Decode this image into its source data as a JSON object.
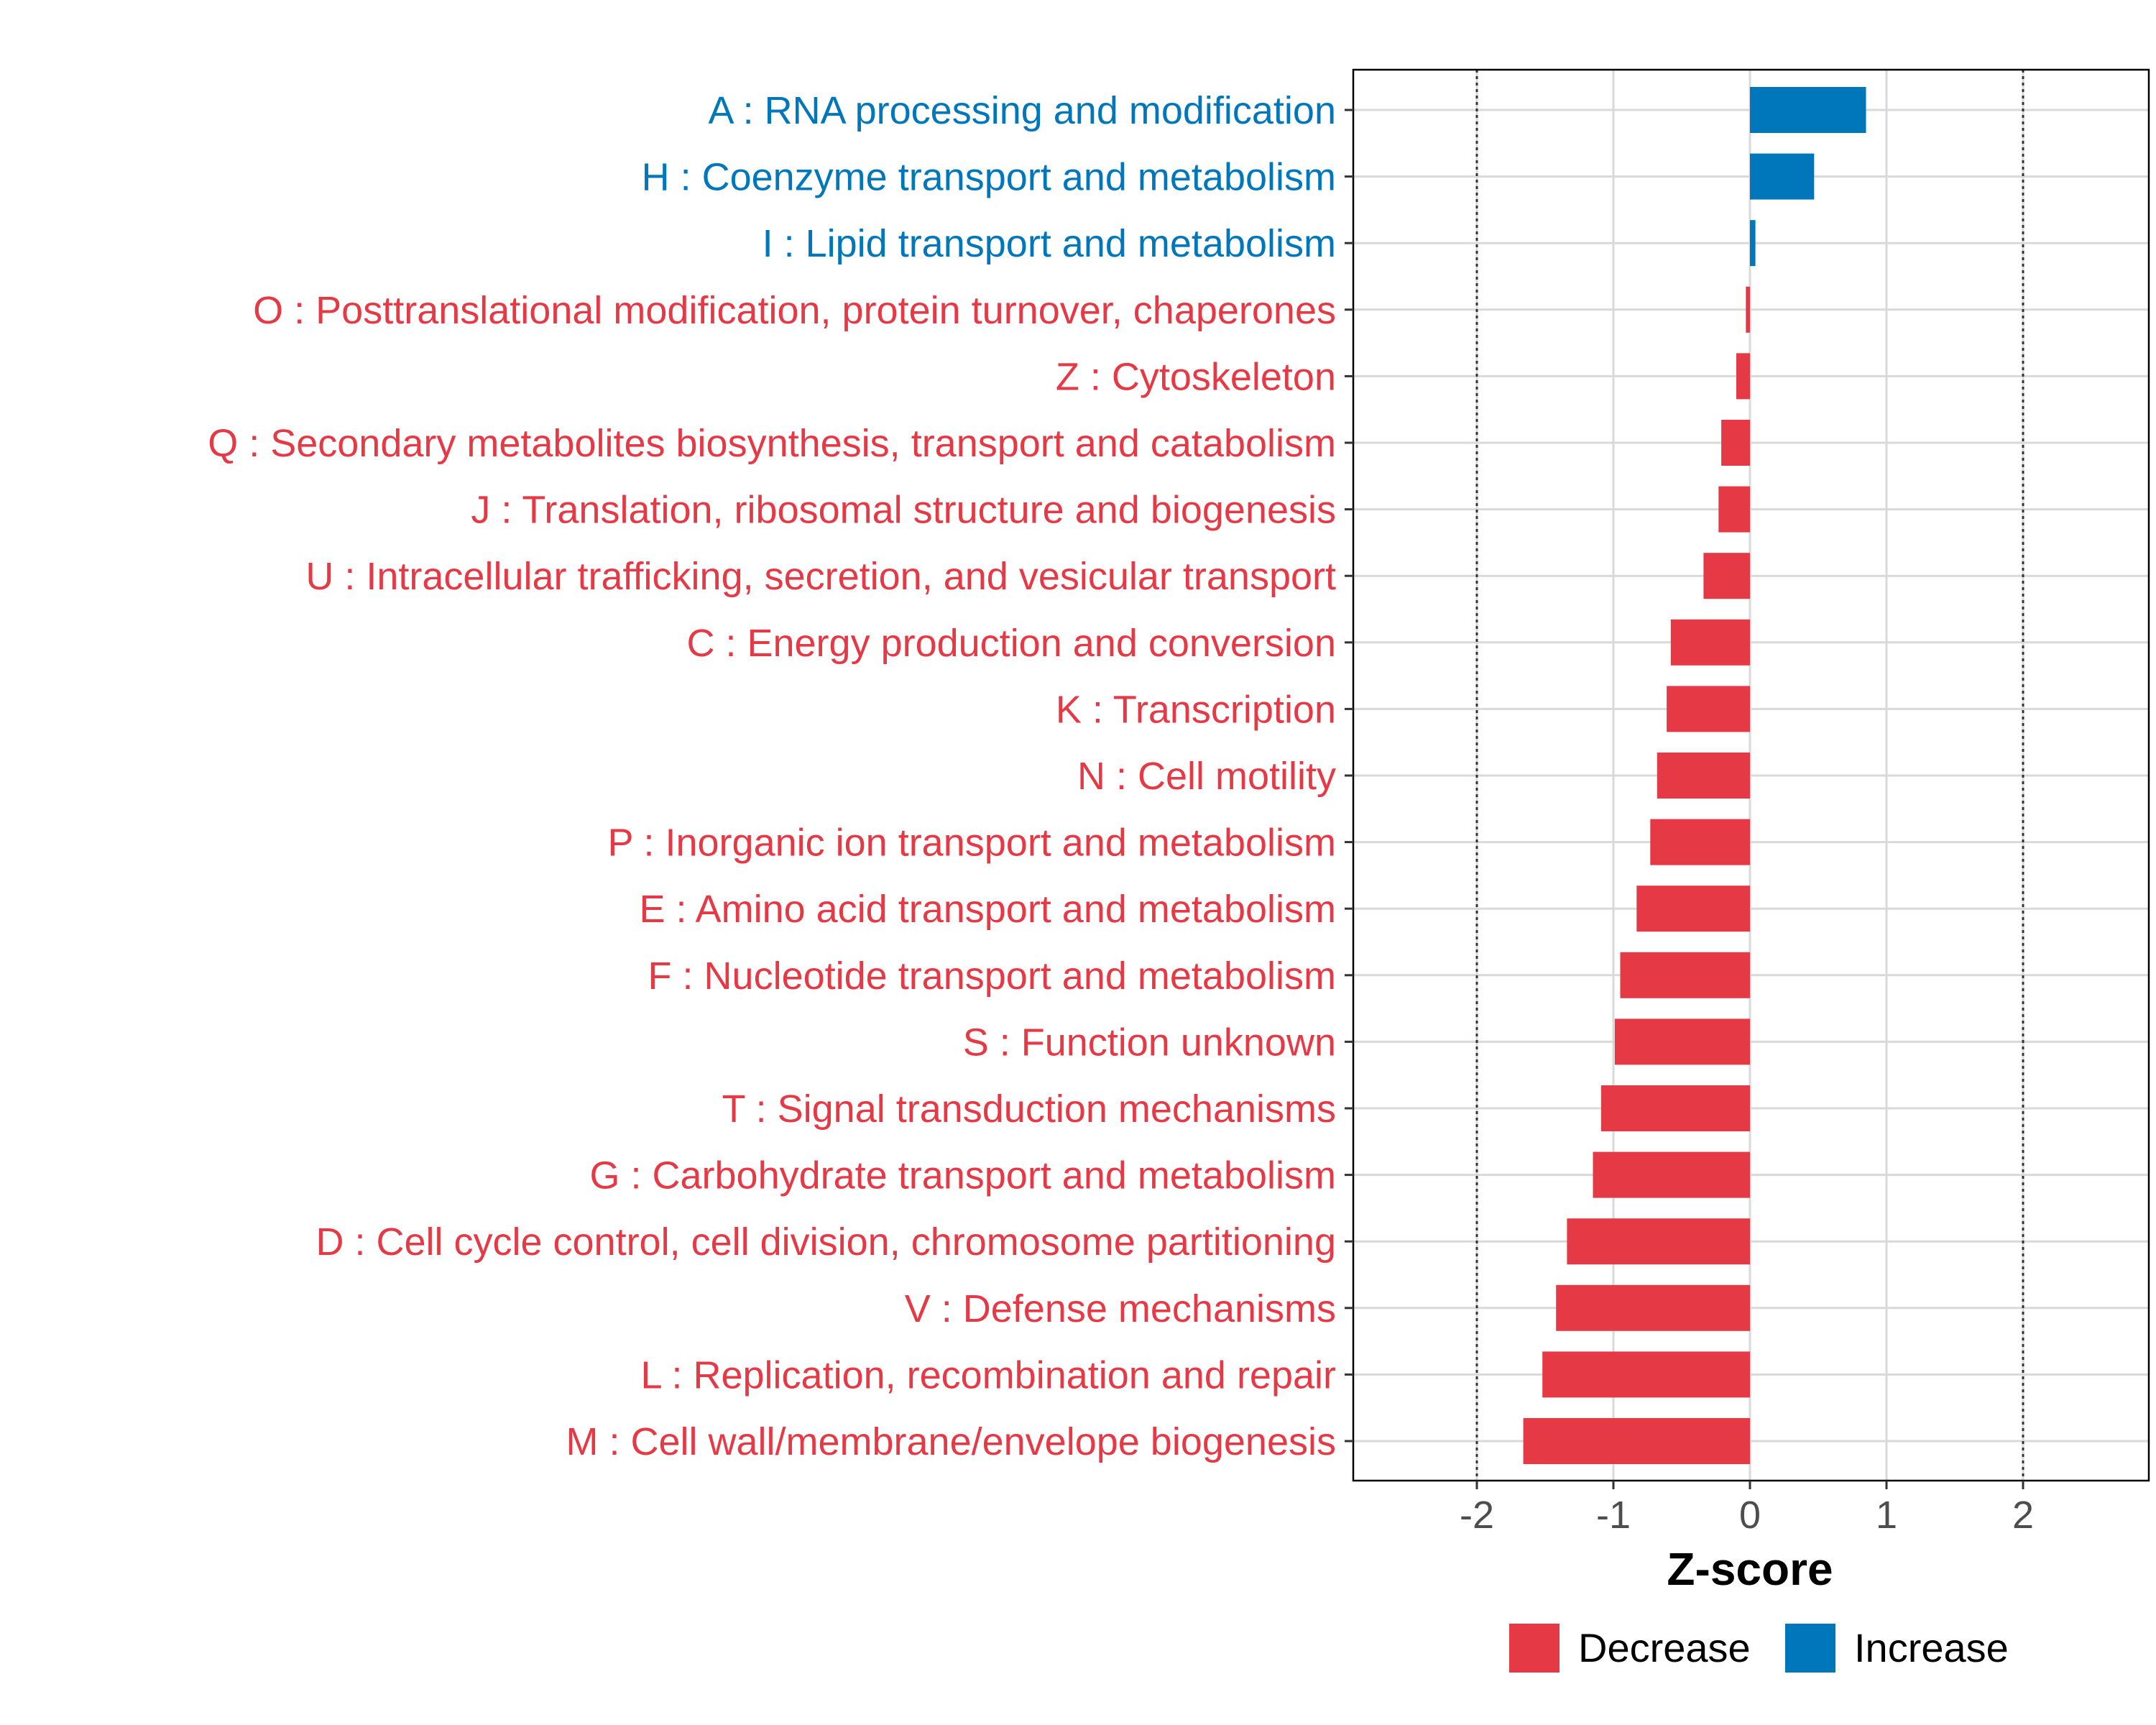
{
  "chart_data": {
    "type": "bar",
    "orientation": "horizontal",
    "xlabel": "Z-score",
    "xlim": [
      -2.9,
      2.9
    ],
    "xticks": [
      -2,
      -1,
      0,
      1,
      2
    ],
    "xtick_labels": [
      "-2",
      "-1",
      "0",
      "1",
      "2"
    ],
    "reference_lines": [
      -2,
      2
    ],
    "grid": true,
    "colors": {
      "Decrease": "#e63946",
      "Increase": "#0077bb"
    },
    "categories": [
      "A : RNA processing and modification",
      "H : Coenzyme transport and metabolism",
      "I : Lipid transport and metabolism",
      "O : Posttranslational modification, protein turnover, chaperones",
      "Z : Cytoskeleton",
      "Q : Secondary metabolites biosynthesis, transport and catabolism",
      "J : Translation, ribosomal structure and biogenesis",
      "U : Intracellular trafficking, secretion, and vesicular transport",
      "C : Energy production and conversion",
      "K : Transcription",
      "N : Cell motility",
      "P : Inorganic ion transport and metabolism",
      "E : Amino acid transport and metabolism",
      "F : Nucleotide transport and metabolism",
      "S : Function unknown",
      "T : Signal transduction mechanisms",
      "G : Carbohydrate transport and metabolism",
      "D : Cell cycle control, cell division, chromosome partitioning",
      "V : Defense mechanisms",
      "L : Replication, recombination and repair",
      "M : Cell wall/membrane/envelope biogenesis"
    ],
    "values": [
      0.85,
      0.47,
      0.04,
      -0.03,
      -0.1,
      -0.21,
      -0.23,
      -0.34,
      -0.58,
      -0.61,
      -0.68,
      -0.73,
      -0.83,
      -0.95,
      -0.99,
      -1.09,
      -1.15,
      -1.34,
      -1.42,
      -1.52,
      -1.66
    ],
    "groups": [
      "Increase",
      "Increase",
      "Increase",
      "Decrease",
      "Decrease",
      "Decrease",
      "Decrease",
      "Decrease",
      "Decrease",
      "Decrease",
      "Decrease",
      "Decrease",
      "Decrease",
      "Decrease",
      "Decrease",
      "Decrease",
      "Decrease",
      "Decrease",
      "Decrease",
      "Decrease",
      "Decrease"
    ],
    "legend": {
      "position": "bottom",
      "entries": [
        {
          "label": "Decrease",
          "color": "#e63946"
        },
        {
          "label": "Increase",
          "color": "#0077bb"
        }
      ]
    }
  }
}
